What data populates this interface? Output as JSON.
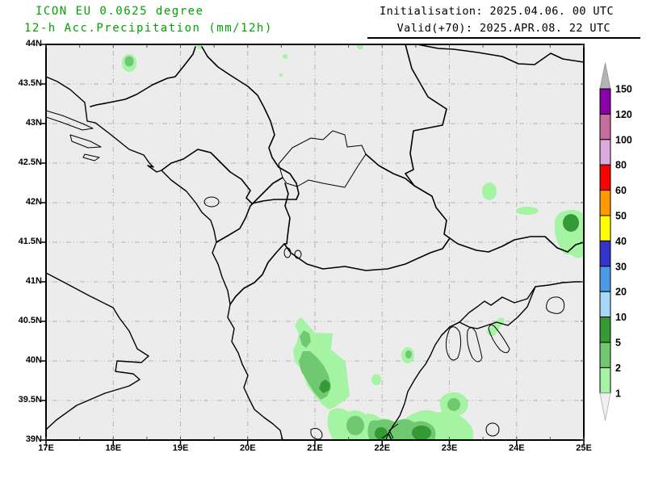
{
  "header": {
    "model_line": "ICON EU 0.0625 degree",
    "param_line": "12-h Acc.Precipitation (mm/12h)",
    "init_line": "Initialisation: 2025.04.06. 00 UTC",
    "valid_line": "Valid(+70): 2025.APR.08. 22 UTC",
    "title_color": "#00a400",
    "info_color": "#000000"
  },
  "map": {
    "x_ticks": [
      "17E",
      "18E",
      "19E",
      "20E",
      "21E",
      "22E",
      "23E",
      "24E",
      "25E"
    ],
    "y_ticks": [
      "44N",
      "43.5N",
      "43N",
      "42.5N",
      "42N",
      "41.5N",
      "41N",
      "40.5N",
      "40N",
      "39.5N",
      "39N"
    ],
    "background": "#ececec",
    "grid_color": "#b4b4b4",
    "frame_color": "#000000",
    "precip_colors": {
      "light": "#a4f4a4",
      "medium": "#70c870",
      "dark": "#349a34"
    }
  },
  "colorbar": {
    "labels_top_to_bottom": [
      "150",
      "120",
      "100",
      "80",
      "60",
      "50",
      "40",
      "30",
      "20",
      "10",
      "5",
      "2",
      "1"
    ],
    "colors_top_to_bottom": [
      "#8a00a8",
      "#c86e9e",
      "#dcaadc",
      "#fa0000",
      "#ff9900",
      "#ffff00",
      "#3434cc",
      "#4a9ae8",
      "#a8d8f8",
      "#349a34",
      "#70c870",
      "#a4f4a4"
    ],
    "above_max_color": "#b4b4b4",
    "below_min_color": "#f0f0f0",
    "unit": "mm/12h"
  },
  "chart_data": {
    "type": "heatmap",
    "title": "12-h Acc.Precipitation (mm/12h)",
    "x_range_deg_east": [
      17,
      25
    ],
    "y_range_deg_north": [
      39,
      44
    ],
    "scale_levels_mm": [
      1,
      2,
      5,
      10,
      20,
      30,
      40,
      50,
      60,
      80,
      100,
      120,
      150
    ],
    "precip_areas": [
      {
        "lon": 18.2,
        "lat": 43.75,
        "level_mm": "2-5"
      },
      {
        "lon": 19.3,
        "lat": 44.0,
        "level_mm": "1-2"
      },
      {
        "lon": 20.6,
        "lat": 43.85,
        "level_mm": "1-2"
      },
      {
        "lon": 21.7,
        "lat": 44.0,
        "level_mm": "1-2"
      },
      {
        "lon": 23.6,
        "lat": 42.15,
        "level_mm": "1-2"
      },
      {
        "lon": 24.1,
        "lat": 41.95,
        "level_mm": "1-2"
      },
      {
        "lon": 24.9,
        "lat": 41.75,
        "level_mm": "5-10"
      },
      {
        "lon": 23.6,
        "lat": 40.45,
        "level_mm": "1-2"
      },
      {
        "lon": 21.0,
        "lat": 39.9,
        "level_mm": "5-10"
      },
      {
        "lon": 22.3,
        "lat": 40.1,
        "level_mm": "2-5"
      },
      {
        "lon": 21.9,
        "lat": 39.8,
        "level_mm": "1-2"
      },
      {
        "lon": 23.0,
        "lat": 40.0,
        "level_mm": "2-5"
      },
      {
        "lon": 21.3,
        "lat": 39.15,
        "level_mm": "5-10"
      },
      {
        "lon": 21.9,
        "lat": 39.1,
        "level_mm": "5-10"
      }
    ]
  }
}
